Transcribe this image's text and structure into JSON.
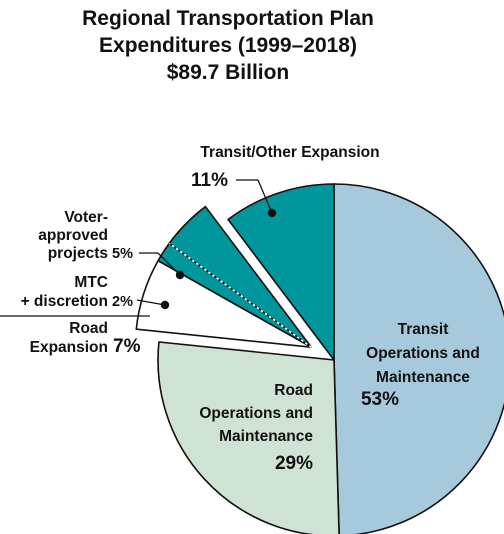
{
  "chart_data": {
    "type": "pie",
    "title": [
      "Regional Transportation Plan",
      "Expenditures (1999–2018)",
      "$89.7 Billion"
    ],
    "slices": [
      {
        "label_lines": [
          "Transit",
          "Operations and",
          "Maintenance"
        ],
        "percent_label": "53%",
        "value": 53,
        "color": "#a6cadb"
      },
      {
        "label_lines": [
          "Road",
          "Operations and",
          "Maintenance"
        ],
        "percent_label": "29%",
        "value": 29,
        "color": "#cfe3d4"
      },
      {
        "label_lines": [
          "Road",
          "Expansion"
        ],
        "percent_label": "7%",
        "value": 7,
        "color": "#ffffff",
        "exploded": true
      },
      {
        "label_lines": [
          "MTC",
          "+ discretion"
        ],
        "percent_label": "2%",
        "value": 2,
        "color": "#00969b",
        "exploded": true
      },
      {
        "label_lines": [
          "Voter-",
          "approved",
          "projects"
        ],
        "percent_label": "5%",
        "value": 5,
        "color": "#00969b",
        "exploded": true
      },
      {
        "label_lines": [
          "Transit/Other Expansion"
        ],
        "percent_label": "11%",
        "value": 11,
        "color": "#00969b"
      }
    ],
    "legend": "none"
  }
}
